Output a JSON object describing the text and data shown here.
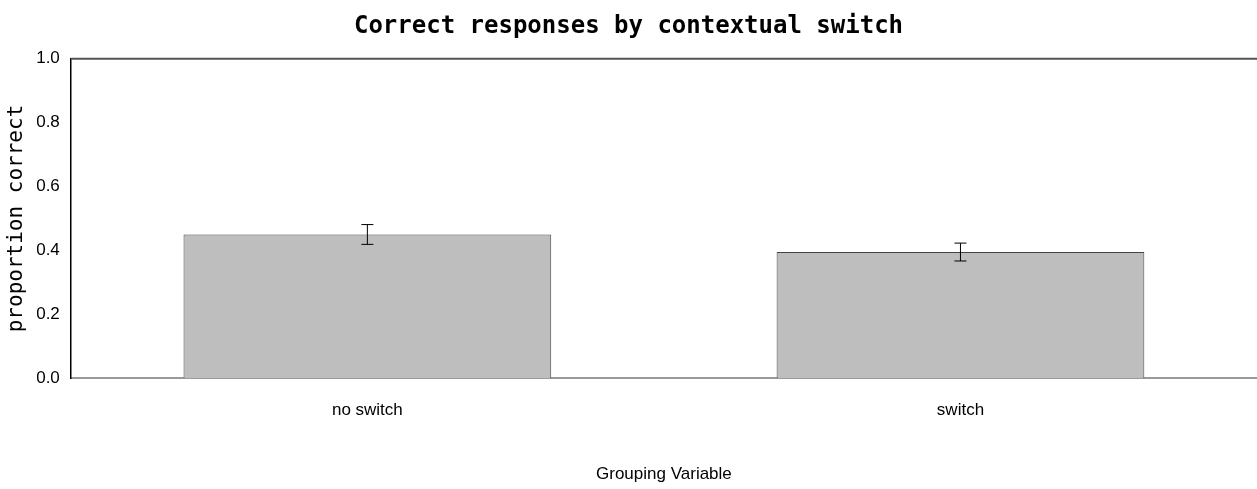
{
  "chart_data": {
    "type": "bar",
    "title": "Correct responses by contextual switch",
    "xlabel": "Grouping Variable",
    "ylabel": "proportion correct",
    "categories": [
      "no switch",
      "switch"
    ],
    "values": [
      0.45,
      0.395
    ],
    "errors": [
      0.031,
      0.028
    ],
    "color": "#bebebe",
    "ylim": [
      0,
      1
    ],
    "yticks": [
      {
        "value": 0,
        "label": "0.0"
      },
      {
        "value": 0.2,
        "label": "0.2"
      },
      {
        "value": 0.4,
        "label": "0.4"
      },
      {
        "value": 0.6,
        "label": "0.6"
      },
      {
        "value": 0.8,
        "label": "0.8"
      },
      {
        "value": 1,
        "label": "1.0"
      }
    ],
    "ref_lines": [
      {
        "axis": "y",
        "value": 1,
        "color": "#555555"
      }
    ],
    "grid": false,
    "legend": false
  }
}
